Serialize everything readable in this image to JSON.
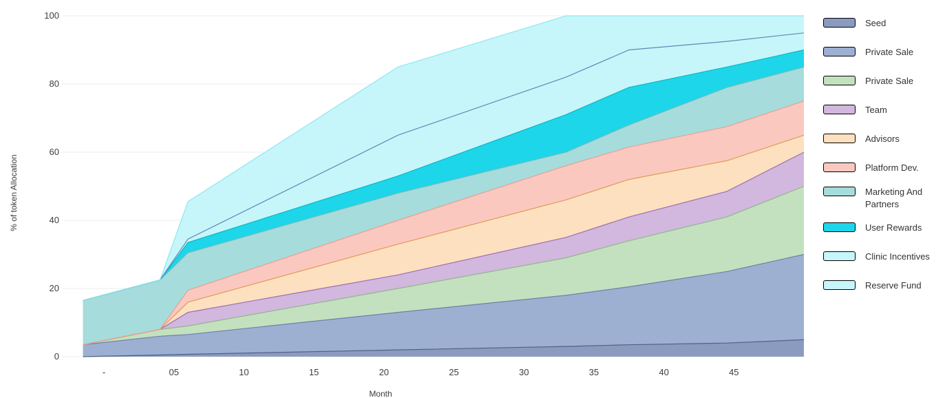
{
  "chart_data": {
    "type": "area",
    "stacked": true,
    "ylabel": "% of token Allocation",
    "xlabel": "Month",
    "ylim": [
      0,
      100
    ],
    "yticks": [
      "0",
      "20",
      "40",
      "60",
      "80",
      "100"
    ],
    "x_range": [
      -3,
      50
    ],
    "xticks": [
      {
        "value": 0,
        "label": "-"
      },
      {
        "value": 5,
        "label": "05"
      },
      {
        "value": 10,
        "label": "10"
      },
      {
        "value": 15,
        "label": "15"
      },
      {
        "value": 20,
        "label": "20"
      },
      {
        "value": 25,
        "label": "25"
      },
      {
        "value": 30,
        "label": "30"
      },
      {
        "value": 35,
        "label": "35"
      },
      {
        "value": 40,
        "label": "40"
      },
      {
        "value": 45,
        "label": "45"
      }
    ],
    "grid": true,
    "legend_position": "right",
    "x": [
      -1.5,
      4.0,
      6.0,
      21.0,
      33.0,
      37.5,
      44.5,
      51.5
    ],
    "series": [
      {
        "name": "Seed",
        "color": "#8b9bc0",
        "line": "#505f86",
        "cumulative": [
          0.0,
          0.5,
          0.7,
          2.0,
          3.0,
          3.5,
          4.0,
          5.0
        ]
      },
      {
        "name": "Private Sale",
        "color": "#9db0d2",
        "line": "#6e80a8",
        "cumulative": [
          3.5,
          6.0,
          6.5,
          13.0,
          18.0,
          20.5,
          25.0,
          30.0
        ]
      },
      {
        "name": "Private Sale",
        "color": "#c3e1bf",
        "line": "#90b78b",
        "cumulative": [
          3.5,
          8.0,
          9.0,
          20.0,
          29.0,
          34.0,
          41.0,
          50.0
        ]
      },
      {
        "name": "Team",
        "color": "#d2b7de",
        "line": "#9c6fb2",
        "cumulative": [
          3.5,
          8.0,
          13.0,
          24.0,
          35.0,
          41.0,
          48.5,
          60.0
        ]
      },
      {
        "name": "Advisors",
        "color": "#fde0c0",
        "line": "#e09a55",
        "cumulative": [
          3.5,
          8.0,
          16.0,
          33.0,
          46.0,
          52.0,
          57.5,
          65.0
        ]
      },
      {
        "name": "Platform Dev.",
        "color": "#fbc8c0",
        "line": "#e8a093",
        "cumulative": [
          3.5,
          8.0,
          19.5,
          40.0,
          56.0,
          61.5,
          67.5,
          75.0
        ]
      },
      {
        "name": "Marketing And Partners",
        "color": "#a6dcdb",
        "line": "#6bbcbf",
        "cumulative": [
          16.5,
          22.5,
          30.5,
          48.0,
          60.0,
          68.0,
          79.0,
          85.0
        ]
      },
      {
        "name": "User Rewards",
        "color": "#1dd6ea",
        "line": "#11b4c6",
        "cumulative": [
          16.5,
          22.5,
          33.5,
          53.0,
          71.0,
          79.0,
          85.0,
          90.0
        ]
      },
      {
        "name": "Clinic Incentives",
        "color": "#c6f6fa",
        "line": "#5f88b4",
        "cumulative": [
          16.5,
          22.5,
          34.5,
          65.0,
          82.0,
          90.0,
          92.5,
          95.0
        ]
      },
      {
        "name": "Reserve Fund",
        "color": "#c6f6fa",
        "line": "#8ce8f2",
        "cumulative": [
          16.5,
          22.5,
          45.5,
          85.0,
          100.0,
          100.0,
          100.0,
          100.0
        ]
      }
    ]
  },
  "legend": [
    {
      "label": "Seed",
      "color": "#8b9bc0"
    },
    {
      "label": "Private Sale",
      "color": "#9db0d2"
    },
    {
      "label": "Private Sale",
      "color": "#c3e1bf"
    },
    {
      "label": "Team",
      "color": "#d2b7de"
    },
    {
      "label": "Advisors",
      "color": "#fde0c0"
    },
    {
      "label": "Platform Dev.",
      "color": "#fbc8c0"
    },
    {
      "label": "Marketing And Partners",
      "color": "#a6dcdb"
    },
    {
      "label": "User Rewards",
      "color": "#1dd6ea"
    },
    {
      "label": "Clinic Incentives",
      "color": "#c6f6fa"
    },
    {
      "label": "Reserve Fund",
      "color": "#c6f6fa"
    }
  ]
}
